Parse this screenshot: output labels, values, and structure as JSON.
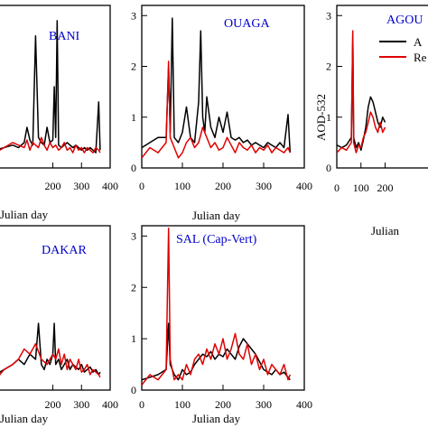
{
  "chart_data": [
    {
      "type": "line",
      "title": "BANI",
      "xlabel": "Julian day",
      "ylabel": "",
      "xlim": [
        0,
        400
      ],
      "ylim": [
        0,
        3.2
      ],
      "xticks": [
        200,
        300,
        400
      ],
      "yticks": [],
      "series": [
        {
          "color": "#000000",
          "x": [
            0,
            30,
            60,
            80,
            100,
            110,
            120,
            130,
            140,
            150,
            160,
            170,
            180,
            190,
            200,
            205,
            210,
            215,
            220,
            230,
            240,
            250,
            260,
            270,
            280,
            290,
            300,
            310,
            320,
            330,
            340,
            350,
            360,
            365
          ],
          "values": [
            0.35,
            0.4,
            0.45,
            0.4,
            0.5,
            0.8,
            0.55,
            0.45,
            2.6,
            0.6,
            0.5,
            0.45,
            0.8,
            0.5,
            0.55,
            1.6,
            0.6,
            2.9,
            0.45,
            0.4,
            0.45,
            0.5,
            0.45,
            0.4,
            0.45,
            0.4,
            0.35,
            0.4,
            0.35,
            0.4,
            0.35,
            0.3,
            1.3,
            0.35
          ]
        },
        {
          "color": "#e00000",
          "x": [
            0,
            30,
            60,
            80,
            100,
            110,
            120,
            130,
            140,
            150,
            160,
            170,
            180,
            190,
            200,
            210,
            220,
            230,
            240,
            250,
            260,
            270,
            280,
            290,
            300,
            310,
            320,
            330,
            340,
            350,
            360,
            365
          ],
          "values": [
            0.3,
            0.4,
            0.5,
            0.45,
            0.4,
            0.55,
            0.35,
            0.5,
            0.45,
            0.4,
            0.6,
            0.45,
            0.35,
            0.5,
            0.4,
            0.45,
            0.35,
            0.4,
            0.5,
            0.35,
            0.4,
            0.3,
            0.45,
            0.35,
            0.4,
            0.3,
            0.4,
            0.35,
            0.3,
            0.4,
            0.35,
            0.3
          ]
        }
      ]
    },
    {
      "type": "line",
      "title": "OUAGA",
      "xlabel": "Julian day",
      "ylabel": "",
      "xlim": [
        0,
        400
      ],
      "ylim": [
        0,
        3.2
      ],
      "xticks": [
        0,
        100,
        200,
        300,
        400
      ],
      "yticks": [
        0,
        1,
        2,
        3
      ],
      "series": [
        {
          "color": "#000000",
          "x": [
            0,
            20,
            40,
            60,
            66,
            70,
            75,
            80,
            90,
            100,
            110,
            120,
            130,
            140,
            145,
            150,
            155,
            160,
            170,
            180,
            190,
            200,
            210,
            220,
            230,
            240,
            250,
            260,
            270,
            280,
            290,
            300,
            310,
            320,
            330,
            340,
            350,
            360,
            365
          ],
          "values": [
            0.4,
            0.5,
            0.6,
            0.6,
            2.0,
            0.7,
            2.95,
            0.6,
            0.5,
            0.7,
            1.2,
            0.6,
            0.5,
            1.3,
            2.7,
            1.0,
            0.7,
            1.4,
            0.8,
            0.6,
            1.0,
            0.7,
            1.1,
            0.6,
            0.55,
            0.6,
            0.5,
            0.55,
            0.45,
            0.5,
            0.45,
            0.4,
            0.5,
            0.45,
            0.4,
            0.5,
            0.4,
            1.05,
            0.3
          ]
        },
        {
          "color": "#e00000",
          "x": [
            0,
            20,
            40,
            60,
            66,
            70,
            80,
            90,
            100,
            110,
            120,
            130,
            140,
            150,
            160,
            170,
            180,
            190,
            200,
            210,
            220,
            230,
            240,
            250,
            260,
            270,
            280,
            290,
            300,
            310,
            320,
            330,
            340,
            350,
            360,
            365
          ],
          "values": [
            0.2,
            0.4,
            0.3,
            0.5,
            2.1,
            0.6,
            0.4,
            0.2,
            0.3,
            0.5,
            0.6,
            0.4,
            0.5,
            0.8,
            0.6,
            0.4,
            0.5,
            0.35,
            0.4,
            0.6,
            0.45,
            0.3,
            0.5,
            0.4,
            0.35,
            0.45,
            0.3,
            0.4,
            0.35,
            0.45,
            0.3,
            0.4,
            0.35,
            0.3,
            0.4,
            0.3
          ]
        }
      ]
    },
    {
      "type": "line",
      "title": "AGOU",
      "xlabel": "Julian",
      "ylabel": "AOD-532",
      "xlim": [
        0,
        400
      ],
      "ylim": [
        0,
        3.2
      ],
      "xticks": [
        0,
        100,
        200
      ],
      "yticks": [
        0,
        1,
        2,
        3
      ],
      "legend": [
        "A",
        "Re"
      ],
      "series": [
        {
          "color": "#000000",
          "x": [
            0,
            20,
            40,
            60,
            66,
            70,
            80,
            90,
            100,
            110,
            120,
            130,
            140,
            150,
            160,
            170,
            180,
            190,
            200
          ],
          "values": [
            0.45,
            0.4,
            0.45,
            0.6,
            2.6,
            0.6,
            0.4,
            0.5,
            0.35,
            0.55,
            0.8,
            1.2,
            1.4,
            1.3,
            1.1,
            0.9,
            0.8,
            1.0,
            0.9
          ]
        },
        {
          "color": "#e00000",
          "x": [
            0,
            20,
            40,
            60,
            66,
            70,
            80,
            90,
            100,
            110,
            120,
            130,
            140,
            150,
            160,
            170,
            180,
            190,
            200
          ],
          "values": [
            0.3,
            0.4,
            0.35,
            0.5,
            2.7,
            0.5,
            0.3,
            0.45,
            0.4,
            0.6,
            0.7,
            0.9,
            1.1,
            1.0,
            0.8,
            0.7,
            0.9,
            0.7,
            0.8
          ]
        }
      ]
    },
    {
      "type": "line",
      "title": "DAKAR",
      "xlabel": "Julian day",
      "ylabel": "",
      "xlim": [
        0,
        400
      ],
      "ylim": [
        0,
        3.2
      ],
      "xticks": [
        200,
        300,
        400
      ],
      "yticks": [],
      "series": [
        {
          "color": "#000000",
          "x": [
            0,
            30,
            60,
            80,
            100,
            120,
            140,
            150,
            160,
            170,
            180,
            190,
            200,
            205,
            210,
            220,
            230,
            240,
            250,
            260,
            270,
            280,
            290,
            300,
            310,
            320,
            330,
            340,
            350,
            360,
            365
          ],
          "values": [
            0.3,
            0.4,
            0.5,
            0.6,
            0.5,
            0.7,
            0.6,
            1.3,
            0.5,
            0.4,
            0.6,
            0.5,
            0.7,
            1.3,
            0.5,
            0.6,
            0.4,
            0.5,
            0.6,
            0.4,
            0.5,
            0.45,
            0.4,
            0.5,
            0.35,
            0.4,
            0.45,
            0.35,
            0.4,
            0.3,
            0.35
          ]
        },
        {
          "color": "#e00000",
          "x": [
            0,
            30,
            60,
            80,
            100,
            120,
            140,
            160,
            180,
            200,
            210,
            220,
            230,
            240,
            250,
            260,
            270,
            280,
            290,
            300,
            310,
            320,
            330,
            340,
            350,
            360,
            365
          ],
          "values": [
            0.2,
            0.4,
            0.5,
            0.6,
            0.8,
            0.7,
            0.9,
            0.6,
            0.5,
            0.7,
            0.6,
            0.8,
            0.5,
            0.7,
            0.4,
            0.6,
            0.5,
            0.4,
            0.6,
            0.35,
            0.4,
            0.5,
            0.3,
            0.4,
            0.35,
            0.3,
            0.25
          ]
        }
      ]
    },
    {
      "type": "line",
      "title": "SAL (Cap-Vert)",
      "xlabel": "Julian day",
      "ylabel": "",
      "xlim": [
        0,
        400
      ],
      "ylim": [
        0,
        3.2
      ],
      "xticks": [
        0,
        100,
        200,
        300,
        400
      ],
      "yticks": [
        0,
        1,
        2,
        3
      ],
      "series": [
        {
          "color": "#000000",
          "x": [
            0,
            20,
            40,
            60,
            66,
            70,
            80,
            90,
            100,
            110,
            120,
            130,
            140,
            150,
            160,
            170,
            180,
            190,
            200,
            210,
            220,
            230,
            240,
            250,
            260,
            270,
            280,
            290,
            300,
            310,
            320,
            330,
            340,
            350,
            360,
            365
          ],
          "values": [
            0.2,
            0.25,
            0.3,
            0.4,
            1.3,
            0.5,
            0.3,
            0.2,
            0.4,
            0.3,
            0.35,
            0.5,
            0.6,
            0.7,
            0.65,
            0.75,
            0.6,
            0.7,
            0.65,
            0.8,
            0.7,
            0.6,
            0.85,
            1.0,
            0.9,
            0.8,
            0.7,
            0.55,
            0.4,
            0.35,
            0.3,
            0.4,
            0.3,
            0.35,
            0.25,
            0.2
          ]
        },
        {
          "color": "#e00000",
          "x": [
            0,
            20,
            40,
            60,
            66,
            70,
            80,
            90,
            100,
            110,
            120,
            130,
            140,
            150,
            160,
            170,
            180,
            190,
            200,
            210,
            220,
            230,
            240,
            250,
            260,
            270,
            280,
            290,
            300,
            310,
            320,
            330,
            340,
            350,
            360,
            365
          ],
          "values": [
            0.1,
            0.3,
            0.2,
            0.4,
            3.15,
            0.6,
            0.2,
            0.3,
            0.2,
            0.5,
            0.3,
            0.6,
            0.7,
            0.5,
            0.8,
            0.6,
            0.9,
            0.7,
            1.0,
            0.6,
            0.8,
            1.1,
            0.7,
            0.6,
            0.9,
            0.5,
            0.7,
            0.4,
            0.6,
            0.3,
            0.5,
            0.4,
            0.3,
            0.5,
            0.2,
            0.3
          ]
        }
      ]
    }
  ]
}
